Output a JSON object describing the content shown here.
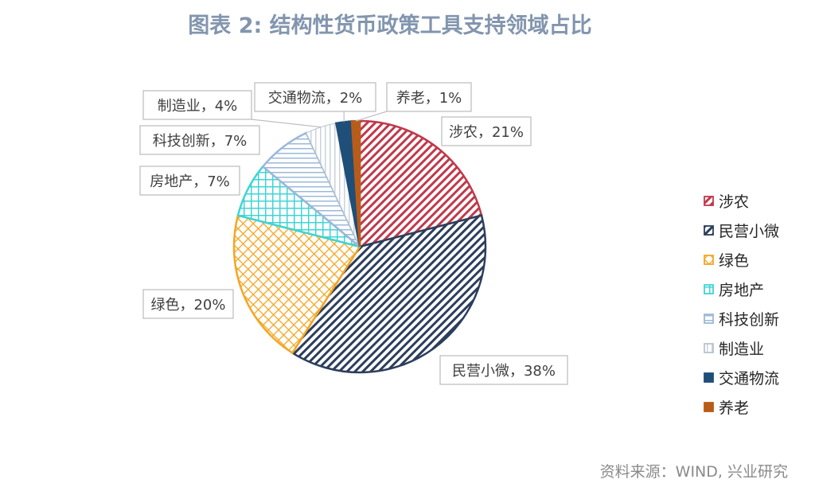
{
  "chart_data": {
    "type": "pie",
    "title": "图表 2:  结构性货币政策工具支持领域占比",
    "categories": [
      "涉农",
      "民营小微",
      "绿色",
      "房地产",
      "科技创新",
      "制造业",
      "交通物流",
      "养老"
    ],
    "values": [
      21,
      38,
      20,
      7,
      7,
      4,
      2,
      1
    ],
    "unit": "%",
    "data_labels": [
      "涉农，21%",
      "民营小微，38%",
      "绿色，20%",
      "房地产，7%",
      "科技创新，7%",
      "制造业，4%",
      "交通物流，2%",
      "养老，1%"
    ],
    "legend": "right",
    "colors": [
      "#c0394b",
      "#2c3e5c",
      "#f5a623",
      "#3fd4d4",
      "#9bb8d8",
      "#b8c4d0",
      "#1f4e79",
      "#b85c1a"
    ]
  },
  "source": "资料来源：WIND, 兴业研究"
}
